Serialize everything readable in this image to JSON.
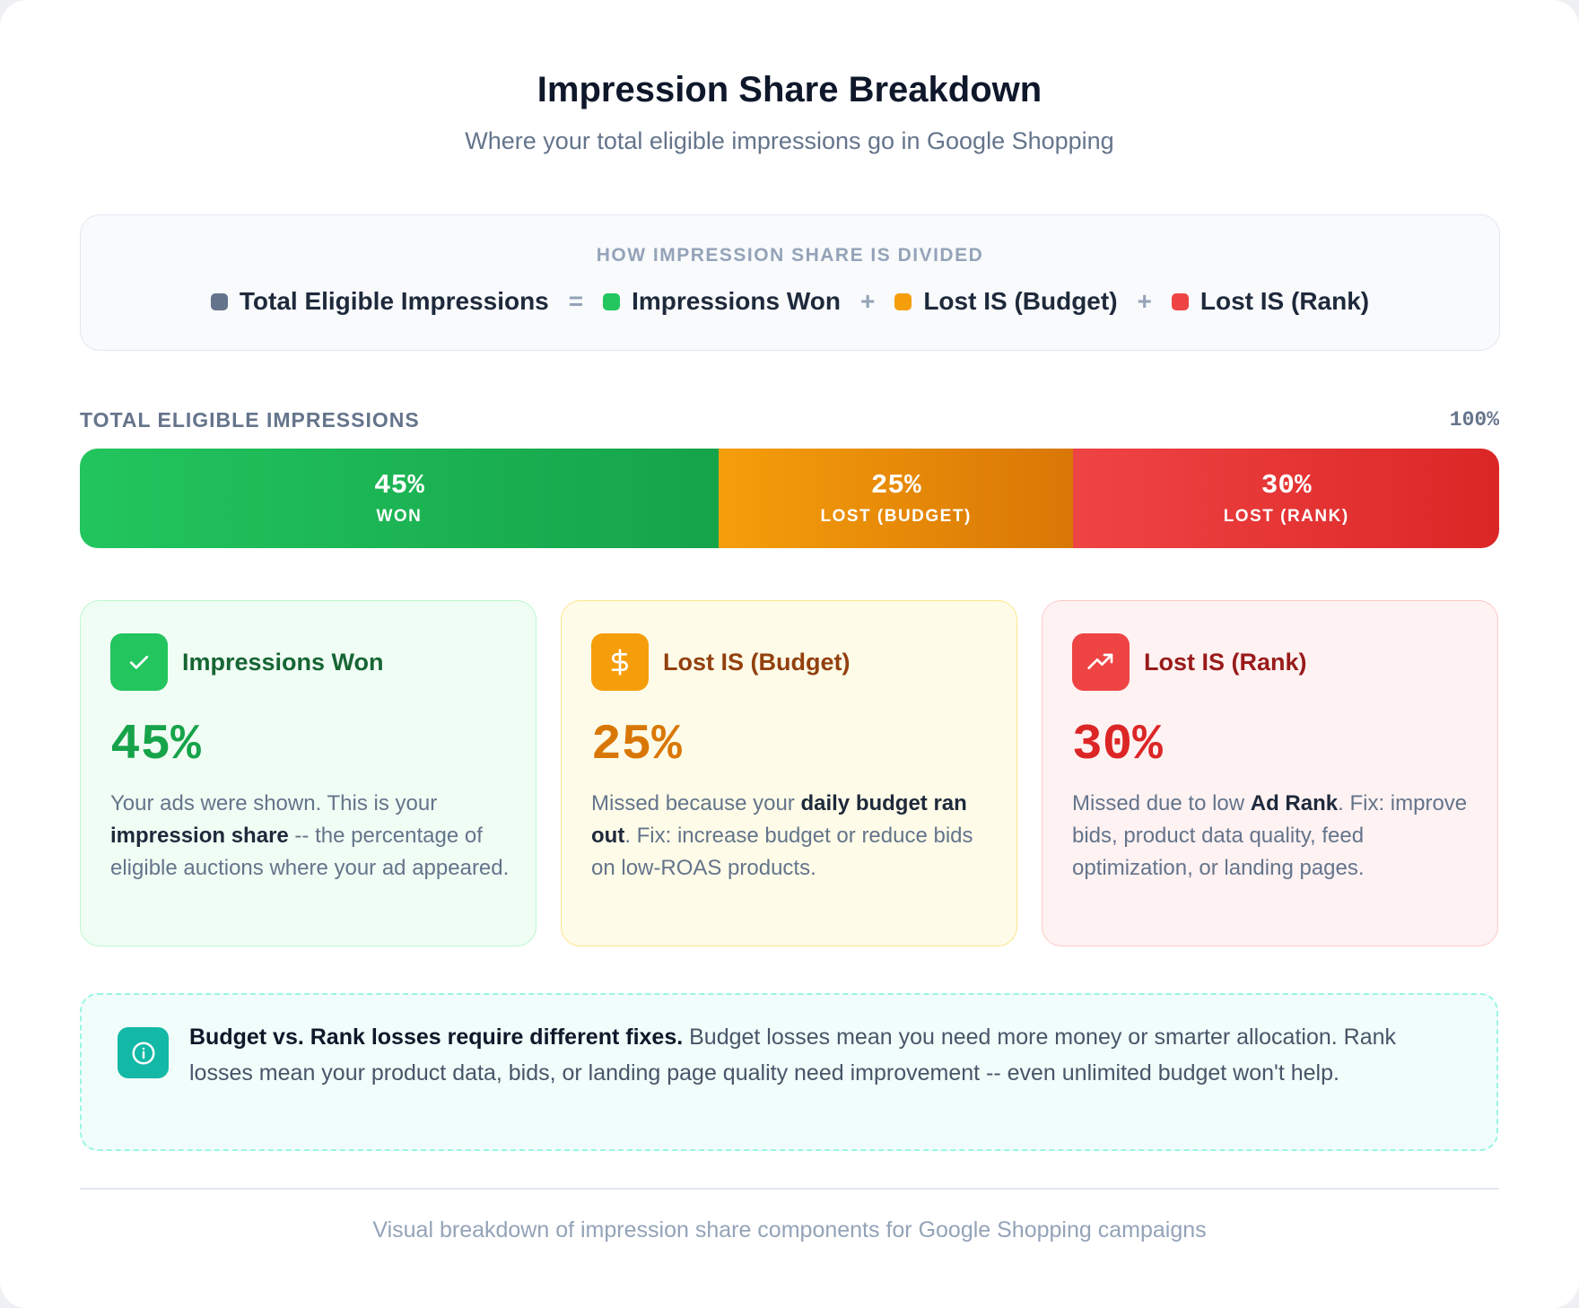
{
  "header": {
    "title": "Impression Share Breakdown",
    "subtitle": "Where your total eligible impressions go in Google Shopping"
  },
  "formula": {
    "heading": "HOW IMPRESSION SHARE IS DIVIDED",
    "items": [
      "Total Eligible Impressions",
      "Impressions Won",
      "Lost IS (Budget)",
      "Lost IS (Rank)"
    ],
    "operators": [
      "=",
      "+",
      "+"
    ]
  },
  "bar": {
    "label": "TOTAL ELIGIBLE IMPRESSIONS",
    "total": {
      "value": 100,
      "label": "100%"
    },
    "segments": [
      {
        "value": 45,
        "value_label": "45%",
        "label": "WON"
      },
      {
        "value": 25,
        "value_label": "25%",
        "label": "LOST (BUDGET)"
      },
      {
        "value": 30,
        "value_label": "30%",
        "label": "LOST (RANK)"
      }
    ]
  },
  "cards": [
    {
      "title": "Impressions Won",
      "value": {
        "value": 45,
        "label": "45%"
      },
      "description": [
        "Your ads were shown. This is your ",
        "impression share",
        " -- the percentage of eligible auctions where your ad appeared."
      ]
    },
    {
      "title": "Lost IS (Budget)",
      "value": {
        "value": 25,
        "label": "25%"
      },
      "description": [
        "Missed because your ",
        "daily budget ran out",
        ". Fix: increase budget or reduce bids on low-ROAS products."
      ]
    },
    {
      "title": "Lost IS (Rank)",
      "value": {
        "value": 30,
        "label": "30%"
      },
      "description": [
        "Missed due to low ",
        "Ad Rank",
        ". Fix: improve bids, product data quality, feed optimization, or landing pages."
      ]
    }
  ],
  "note": [
    "Budget vs. Rank losses require different fixes.",
    " Budget losses mean you need more money or smarter allocation. Rank losses mean your product data, bids, or landing page quality need improvement -- even unlimited budget won't help."
  ],
  "footer": "Visual breakdown of impression share components for Google Shopping campaigns"
}
